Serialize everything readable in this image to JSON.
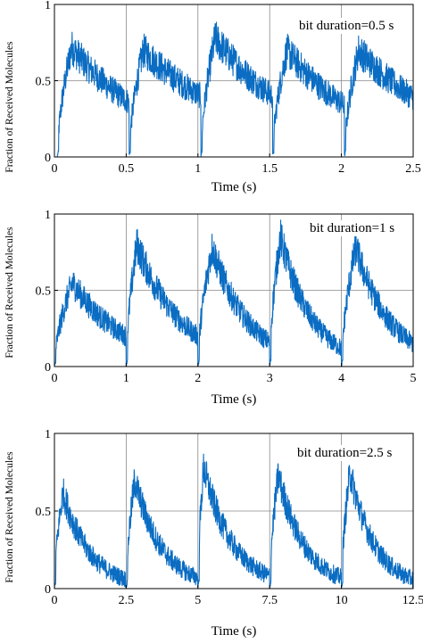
{
  "figure": {
    "ylabel": "Fraction of Received Molecules",
    "xlabel": "Time (s)"
  },
  "chart_data": [
    {
      "type": "line",
      "annotation": "bit duration=0.5 s",
      "xlabel": "Time (s)",
      "ylabel": "Fraction of Received Molecules",
      "xlim": [
        0,
        2.5
      ],
      "ylim": [
        0,
        1
      ],
      "xticks": [
        "0",
        "0.5",
        "1",
        "1.5",
        "2",
        "2.5"
      ],
      "yticks": [
        "0",
        "0.5",
        "1"
      ],
      "grid": true,
      "series": [
        {
          "values_description_free": true,
          "bit_starts": [
            0.02,
            0.52,
            1.02,
            1.52,
            2.02
          ],
          "bit_duration": 0.5,
          "peak_times": [
            0.12,
            0.62,
            1.12,
            1.62,
            2.12
          ],
          "peaks": [
            0.72,
            0.7,
            0.78,
            0.7,
            0.7
          ],
          "end_levels": [
            0.36,
            0.4,
            0.4,
            0.34,
            0.38
          ]
        }
      ]
    },
    {
      "type": "line",
      "annotation": "bit duration=1 s",
      "xlabel": "Time (s)",
      "ylabel": "Fraction of Received Molecules",
      "xlim": [
        0,
        5
      ],
      "ylim": [
        0,
        1
      ],
      "xticks": [
        "0",
        "1",
        "2",
        "3",
        "4",
        "5"
      ],
      "yticks": [
        "0",
        "0.5",
        "1"
      ],
      "grid": true,
      "series": [
        {
          "values_description_free": true,
          "bit_starts": [
            0.0,
            1.0,
            2.0,
            3.0,
            4.0
          ],
          "bit_duration": 1,
          "peak_times": [
            0.25,
            1.15,
            2.2,
            3.15,
            4.2
          ],
          "peaks": [
            0.55,
            0.8,
            0.78,
            0.85,
            0.78
          ],
          "end_levels": [
            0.2,
            0.2,
            0.16,
            0.12,
            0.15
          ]
        }
      ]
    },
    {
      "type": "line",
      "annotation": "bit duration=2.5 s",
      "xlabel": "Time (s)",
      "ylabel": "Fraction of Received Molecules",
      "xlim": [
        0,
        12.5
      ],
      "ylim": [
        0,
        1
      ],
      "xticks": [
        "0",
        "2.5",
        "5",
        "7.5",
        "10",
        "12.5"
      ],
      "yticks": [
        "0",
        "0.5",
        "1"
      ],
      "grid": true,
      "series": [
        {
          "values_description_free": true,
          "bit_starts": [
            0.0,
            2.5,
            5.0,
            7.5,
            10.0
          ],
          "bit_duration": 2.5,
          "peak_times": [
            0.3,
            2.8,
            5.2,
            7.8,
            10.3
          ],
          "peaks": [
            0.62,
            0.7,
            0.78,
            0.73,
            0.75
          ],
          "end_levels": [
            0.06,
            0.07,
            0.08,
            0.07,
            0.06
          ]
        }
      ]
    }
  ]
}
